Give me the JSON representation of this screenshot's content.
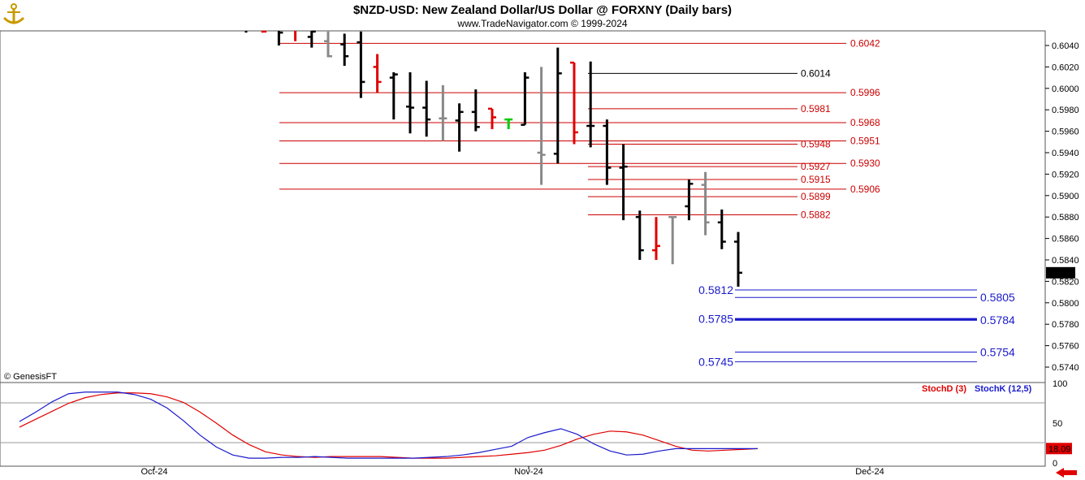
{
  "header": {
    "title": "$NZD-USD:  New Zealand Dollar/US Dollar @ FORXNY  (Daily bars)",
    "subtitle": "www.TradeNavigator.com © 1999-2024",
    "logo_icon": "anchor-icon"
  },
  "copyright": "© GenesisFT",
  "colors": {
    "up_bar": "#000000",
    "down_bar": "#e00000",
    "inside_bar": "#888888",
    "green_bar": "#00cc00",
    "resistance": "#cc0000",
    "support": "#1a1acc",
    "stoch_d": "#e00000",
    "stoch_k": "#1a1acc"
  },
  "price_axis": {
    "ticks": [
      "0.6040",
      "0.6020",
      "0.6000",
      "0.5980",
      "0.5960",
      "0.5940",
      "0.5920",
      "0.5900",
      "0.5880",
      "0.5860",
      "0.5840",
      "0.5820",
      "0.5800",
      "0.5780",
      "0.5760",
      "0.5740"
    ],
    "last_price": "0.5828"
  },
  "time_axis": {
    "labels": [
      "Oct-24",
      "Nov-24",
      "Dec-24"
    ]
  },
  "levels": {
    "resistance_long": [
      "0.6042",
      "0.5996",
      "0.5968",
      "0.5951",
      "0.5930",
      "0.5906"
    ],
    "resistance_short": [
      "0.5981",
      "0.5948",
      "0.5927",
      "0.5915",
      "0.5899",
      "0.5882"
    ],
    "black_level": "0.6014",
    "support": [
      "0.5812",
      "0.5805",
      "0.5785",
      "0.5784",
      "0.5754",
      "0.5745"
    ]
  },
  "stoch": {
    "legend_d": "StochD (3)",
    "legend_k": "StochK (12,5)",
    "ticks": [
      "100",
      "50",
      "0"
    ],
    "last_value": "18.09"
  },
  "chart_data": [
    {
      "type": "ohlc",
      "title": "$NZD-USD:  New Zealand Dollar/US Dollar @ FORXNY  (Daily bars)",
      "ylim": [
        0.573,
        0.6052
      ],
      "bars": [
        {
          "o": 0.6061,
          "h": 0.6062,
          "l": 0.6052,
          "c": 0.6054,
          "color": "black"
        },
        {
          "o": 0.6057,
          "h": 0.606,
          "l": 0.6052,
          "c": 0.6053,
          "color": "red"
        },
        {
          "o": 0.6058,
          "h": 0.6062,
          "l": 0.604,
          "c": 0.6052,
          "color": "black"
        },
        {
          "o": 0.6055,
          "h": 0.6064,
          "l": 0.6044,
          "c": 0.6055,
          "color": "red"
        },
        {
          "o": 0.6048,
          "h": 0.6062,
          "l": 0.6038,
          "c": 0.6053,
          "color": "black"
        },
        {
          "o": 0.6044,
          "h": 0.6053,
          "l": 0.6029,
          "c": 0.603,
          "color": "gray"
        },
        {
          "o": 0.6041,
          "h": 0.6051,
          "l": 0.6021,
          "c": 0.603,
          "color": "black"
        },
        {
          "o": 0.6043,
          "h": 0.6053,
          "l": 0.5991,
          "c": 0.6006,
          "color": "black"
        },
        {
          "o": 0.602,
          "h": 0.6032,
          "l": 0.5996,
          "c": 0.6006,
          "color": "red"
        },
        {
          "o": 0.601,
          "h": 0.6015,
          "l": 0.5971,
          "c": 0.6013,
          "color": "black"
        },
        {
          "o": 0.5983,
          "h": 0.6015,
          "l": 0.5958,
          "c": 0.5982,
          "color": "black"
        },
        {
          "o": 0.5982,
          "h": 0.6007,
          "l": 0.5955,
          "c": 0.5971,
          "color": "black"
        },
        {
          "o": 0.5972,
          "h": 0.6003,
          "l": 0.5951,
          "c": 0.5972,
          "color": "gray"
        },
        {
          "o": 0.597,
          "h": 0.5986,
          "l": 0.5941,
          "c": 0.5978,
          "color": "black"
        },
        {
          "o": 0.5978,
          "h": 0.5999,
          "l": 0.596,
          "c": 0.5964,
          "color": "black"
        },
        {
          "o": 0.5981,
          "h": 0.5981,
          "l": 0.5962,
          "c": 0.5973,
          "color": "red"
        },
        {
          "o": 0.5971,
          "h": 0.5972,
          "l": 0.5962,
          "c": 0.5971,
          "color": "green"
        },
        {
          "o": 0.5966,
          "h": 0.6015,
          "l": 0.5966,
          "c": 0.601,
          "color": "black"
        },
        {
          "o": 0.594,
          "h": 0.602,
          "l": 0.591,
          "c": 0.5938,
          "color": "gray"
        },
        {
          "o": 0.5939,
          "h": 0.6038,
          "l": 0.593,
          "c": 0.6014,
          "color": "black"
        },
        {
          "o": 0.6024,
          "h": 0.6024,
          "l": 0.5948,
          "c": 0.5959,
          "color": "red"
        },
        {
          "o": 0.5965,
          "h": 0.6025,
          "l": 0.5945,
          "c": 0.5965,
          "color": "black"
        },
        {
          "o": 0.5965,
          "h": 0.5971,
          "l": 0.591,
          "c": 0.5926,
          "color": "black"
        },
        {
          "o": 0.5926,
          "h": 0.5948,
          "l": 0.5877,
          "c": 0.5927,
          "color": "black"
        },
        {
          "o": 0.588,
          "h": 0.5886,
          "l": 0.584,
          "c": 0.5849,
          "color": "black"
        },
        {
          "o": 0.5849,
          "h": 0.588,
          "l": 0.584,
          "c": 0.5853,
          "color": "red"
        },
        {
          "o": 0.588,
          "h": 0.588,
          "l": 0.5836,
          "c": 0.588,
          "color": "gray"
        },
        {
          "o": 0.589,
          "h": 0.5915,
          "l": 0.5877,
          "c": 0.5911,
          "color": "black"
        },
        {
          "o": 0.591,
          "h": 0.5922,
          "l": 0.5863,
          "c": 0.5875,
          "color": "gray"
        },
        {
          "o": 0.5875,
          "h": 0.5887,
          "l": 0.585,
          "c": 0.5857,
          "color": "black"
        },
        {
          "o": 0.5857,
          "h": 0.5866,
          "l": 0.5815,
          "c": 0.5828,
          "color": "black"
        }
      ]
    },
    {
      "type": "line",
      "ylim": [
        0,
        100
      ],
      "series": [
        {
          "name": "StochD (3)",
          "values": [
            45,
            55,
            65,
            75,
            82,
            86,
            88,
            88,
            87,
            83,
            76,
            64,
            50,
            35,
            23,
            14,
            10,
            8,
            7,
            8,
            8,
            8,
            8,
            7,
            6,
            6,
            6,
            7,
            8,
            9,
            11,
            13,
            16,
            22,
            30,
            36,
            40,
            39,
            35,
            28,
            21,
            16,
            15,
            16,
            17,
            18
          ]
        },
        {
          "name": "StochK (12,5)",
          "values": [
            52,
            64,
            77,
            87,
            89,
            89,
            89,
            86,
            80,
            69,
            53,
            35,
            20,
            10,
            6,
            6,
            7,
            7,
            8,
            7,
            6,
            6,
            6,
            6,
            6,
            7,
            8,
            10,
            13,
            17,
            21,
            32,
            38,
            43,
            36,
            24,
            15,
            10,
            11,
            15,
            18,
            18,
            18,
            18,
            18,
            18
          ]
        }
      ],
      "y_ticks": [
        100,
        50,
        0
      ]
    }
  ]
}
